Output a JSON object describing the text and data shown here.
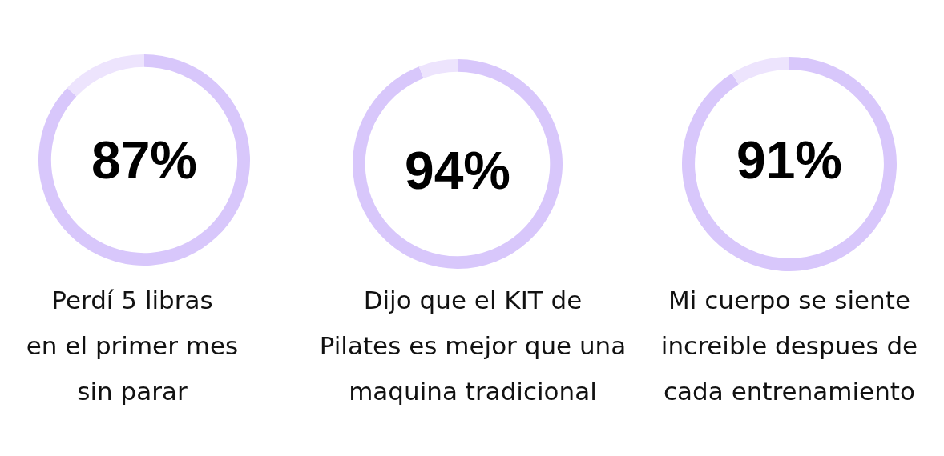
{
  "chart_data": [
    {
      "type": "donut",
      "title": "Perdí 5 libras\nen el primer mes\nsin parar",
      "categories": [
        null,
        null
      ],
      "values": [
        87,
        13
      ],
      "colors": [
        "#d8c7fb",
        "#ede4fd"
      ],
      "value_labels": [
        "87%",
        null
      ]
    },
    {
      "type": "donut",
      "title": "Dijo que el KIT de\nPilates es mejor que una\nmaquina tradicional",
      "categories": [
        null,
        null
      ],
      "values": [
        94,
        6
      ],
      "colors": [
        "#d8c7fb",
        "#ede4fd"
      ],
      "value_labels": [
        "94%",
        null
      ]
    },
    {
      "type": "donut",
      "title": "Mi cuerpo se siente\nincreible despues de\ncada entrenamiento",
      "categories": [
        null,
        null
      ],
      "values": [
        91,
        9
      ],
      "colors": [
        "#d8c7fb",
        "#ede4fd"
      ],
      "value_labels": [
        "91%",
        null
      ]
    }
  ]
}
